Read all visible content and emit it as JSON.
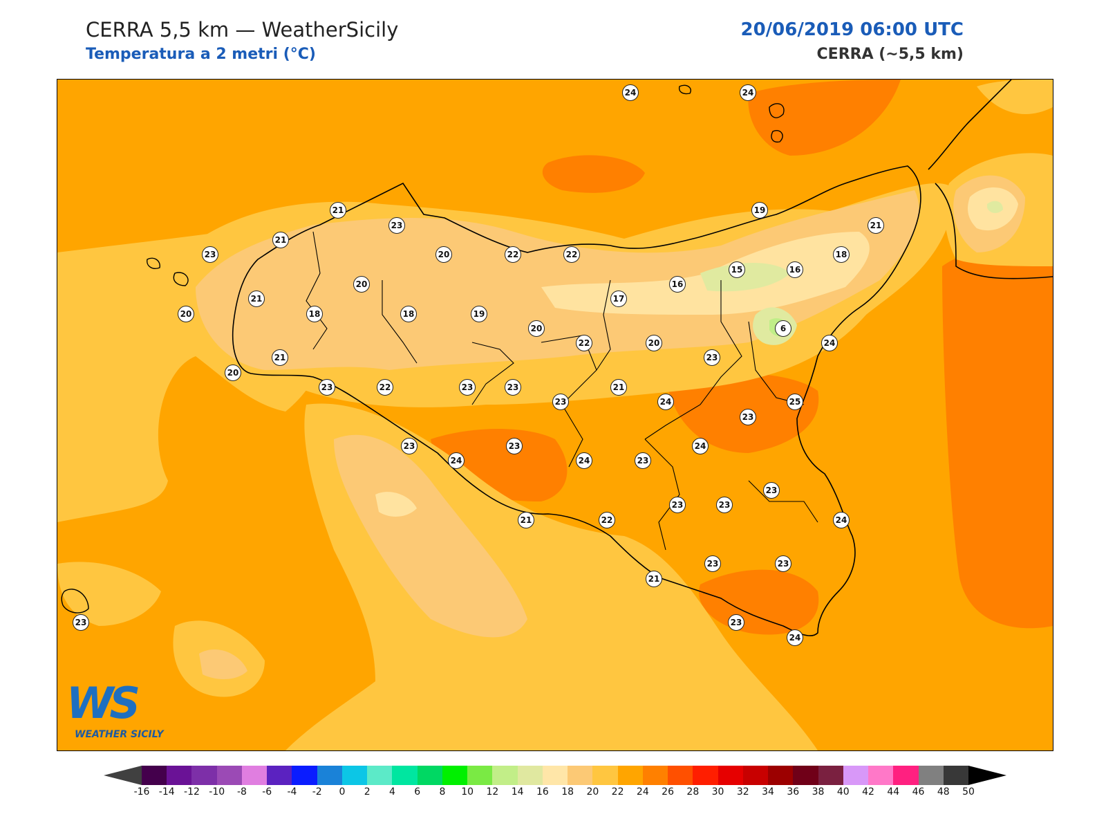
{
  "header": {
    "title": "CERRA 5,5 km — WeatherSicily",
    "subtitle": "Temperatura a 2 metri (°C)",
    "datetime": "20/06/2019 06:00 UTC",
    "model": "CERRA (~5,5 km)"
  },
  "colors": {
    "band_24_26": "#ffa500",
    "band_22_24": "#ffc640",
    "band_20_22": "#fcc975",
    "band_18_20": "#ffe3a0",
    "band_16_18": "#ffe9a8",
    "band_14_16": "#e0eaa0",
    "band_12_14": "#c0ee88",
    "band_26_28": "#ff8000",
    "band_28_30": "#ff5000",
    "coast": "#000000",
    "station_fill": "#ffffff"
  },
  "stations": [
    {
      "value": "24"
    },
    {
      "value": "24"
    },
    {
      "value": "21"
    },
    {
      "value": "23"
    },
    {
      "value": "23"
    },
    {
      "value": "21"
    },
    {
      "value": "21"
    },
    {
      "value": "20"
    },
    {
      "value": "22"
    },
    {
      "value": "22"
    },
    {
      "value": "20"
    },
    {
      "value": "19"
    },
    {
      "value": "18"
    },
    {
      "value": "15"
    },
    {
      "value": "16"
    },
    {
      "value": "16"
    },
    {
      "value": "20"
    },
    {
      "value": "21"
    },
    {
      "value": "18"
    },
    {
      "value": "18"
    },
    {
      "value": "19"
    },
    {
      "value": "20"
    },
    {
      "value": "17"
    },
    {
      "value": "6"
    },
    {
      "value": "22"
    },
    {
      "value": "20"
    },
    {
      "value": "24"
    },
    {
      "value": "21"
    },
    {
      "value": "20"
    },
    {
      "value": "23"
    },
    {
      "value": "23"
    },
    {
      "value": "22"
    },
    {
      "value": "23"
    },
    {
      "value": "23"
    },
    {
      "value": "23"
    },
    {
      "value": "21"
    },
    {
      "value": "24"
    },
    {
      "value": "25"
    },
    {
      "value": "23"
    },
    {
      "value": "23"
    },
    {
      "value": "24"
    },
    {
      "value": "23"
    },
    {
      "value": "24"
    },
    {
      "value": "24"
    },
    {
      "value": "23"
    },
    {
      "value": "23"
    },
    {
      "value": "23"
    },
    {
      "value": "23"
    },
    {
      "value": "24"
    },
    {
      "value": "21"
    },
    {
      "value": "22"
    },
    {
      "value": "23"
    },
    {
      "value": "23"
    },
    {
      "value": "21"
    },
    {
      "value": "23"
    },
    {
      "value": "24"
    },
    {
      "value": "23"
    }
  ],
  "colorbar": {
    "ticks": [
      "-16",
      "-14",
      "-12",
      "-10",
      "-8",
      "-6",
      "-4",
      "-2",
      "0",
      "2",
      "4",
      "6",
      "8",
      "10",
      "12",
      "14",
      "16",
      "18",
      "20",
      "22",
      "24",
      "26",
      "28",
      "30",
      "32",
      "34",
      "36",
      "38",
      "40",
      "42",
      "44",
      "46",
      "48",
      "50"
    ],
    "colors": [
      "#44004c",
      "#6a1296",
      "#7d2fa8",
      "#9b4ab5",
      "#e07ee0",
      "#5b22c0",
      "#0a1cff",
      "#1a82d8",
      "#0cc6e6",
      "#5ceac8",
      "#00e6a0",
      "#00d863",
      "#00f000",
      "#7aea44",
      "#c2ee88",
      "#e0e8a0",
      "#ffe6a8",
      "#fcc975",
      "#ffc640",
      "#ffa500",
      "#ff8000",
      "#ff5000",
      "#ff1e00",
      "#e60000",
      "#c80000",
      "#9c0000",
      "#700018",
      "#7a2040",
      "#d898f8",
      "#ff78c8",
      "#ff2080",
      "#808080",
      "#383838"
    ],
    "under_color": "#404040",
    "over_color": "#000000"
  },
  "logo": {
    "letters": "WS",
    "text": "WEATHER SICILY"
  }
}
